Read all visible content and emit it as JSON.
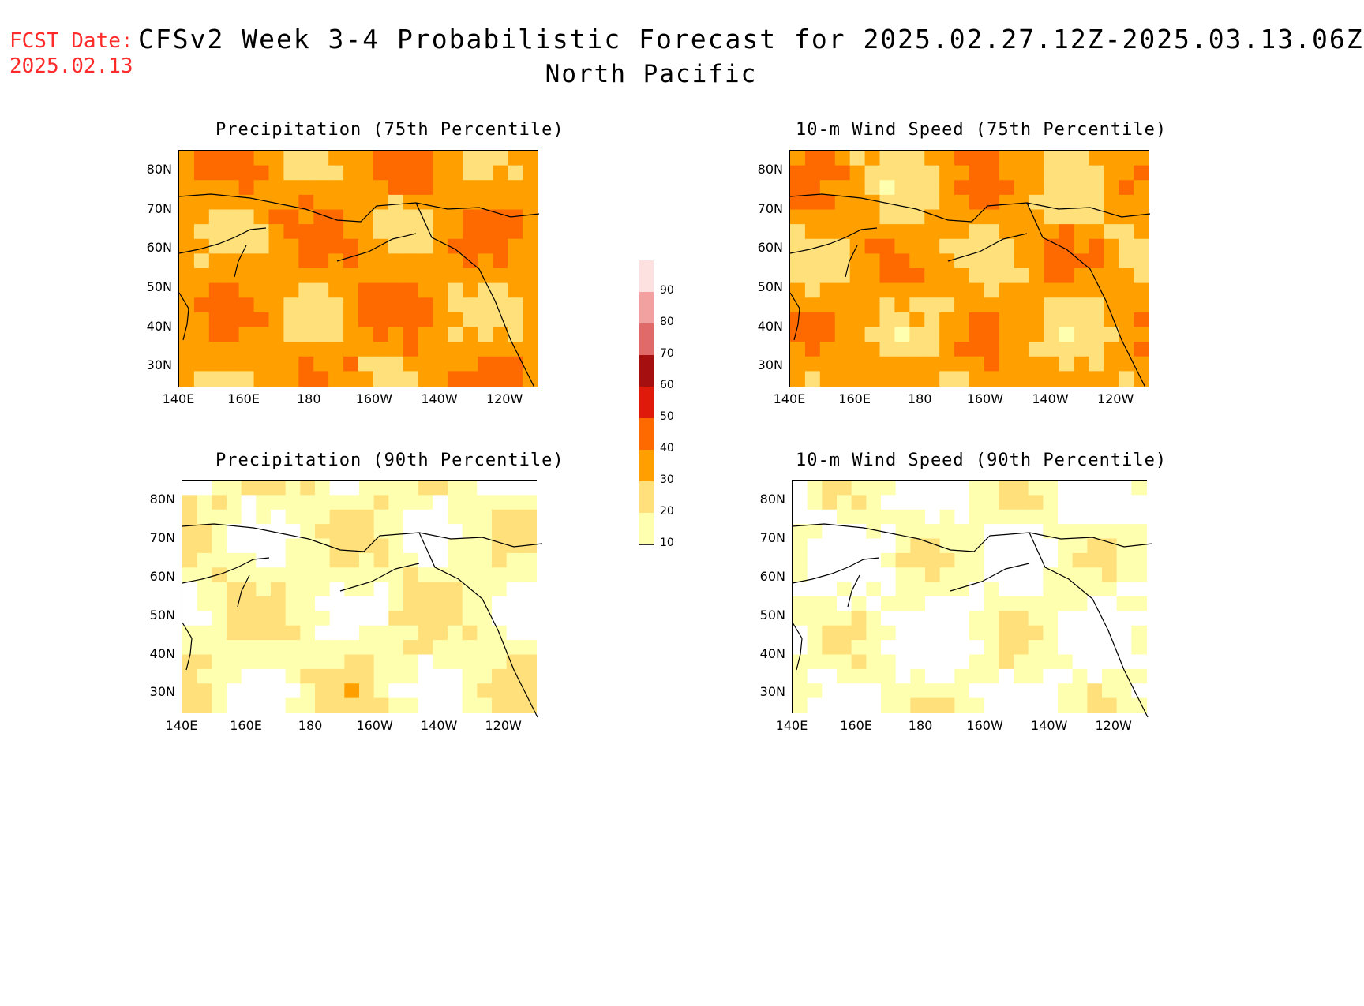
{
  "header": {
    "fcst_label": "FCST Date:",
    "fcst_date": "2025.02.13",
    "title": "CFSv2 Week 3-4 Probabilistic Forecast for 2025.02.27.12Z-2025.03.13.06Z",
    "subtitle": "North Pacific"
  },
  "panels": [
    {
      "title": "Precipitation (75th Percentile)",
      "intensity": 0.75
    },
    {
      "title": "10-m Wind Speed (75th Percentile)",
      "intensity": 0.7
    },
    {
      "title": "Precipitation (90th Percentile)",
      "intensity": 0.3
    },
    {
      "title": "10-m Wind Speed (90th Percentile)",
      "intensity": 0.2
    }
  ],
  "axes": {
    "lat_labels": [
      "80N",
      "70N",
      "60N",
      "50N",
      "40N",
      "30N"
    ],
    "lon_labels": [
      "140E",
      "160E",
      "180",
      "160W",
      "140W",
      "120W"
    ]
  },
  "colorbar": {
    "levels": [
      "90",
      "80",
      "70",
      "60",
      "50",
      "40",
      "30",
      "20",
      "10"
    ],
    "colors": [
      "#fde0e0",
      "#f2a0a0",
      "#e06a6a",
      "#a50f0f",
      "#e01a0a",
      "#ff6a00",
      "#ffa000",
      "#ffe07a",
      "#ffffb0"
    ]
  }
}
